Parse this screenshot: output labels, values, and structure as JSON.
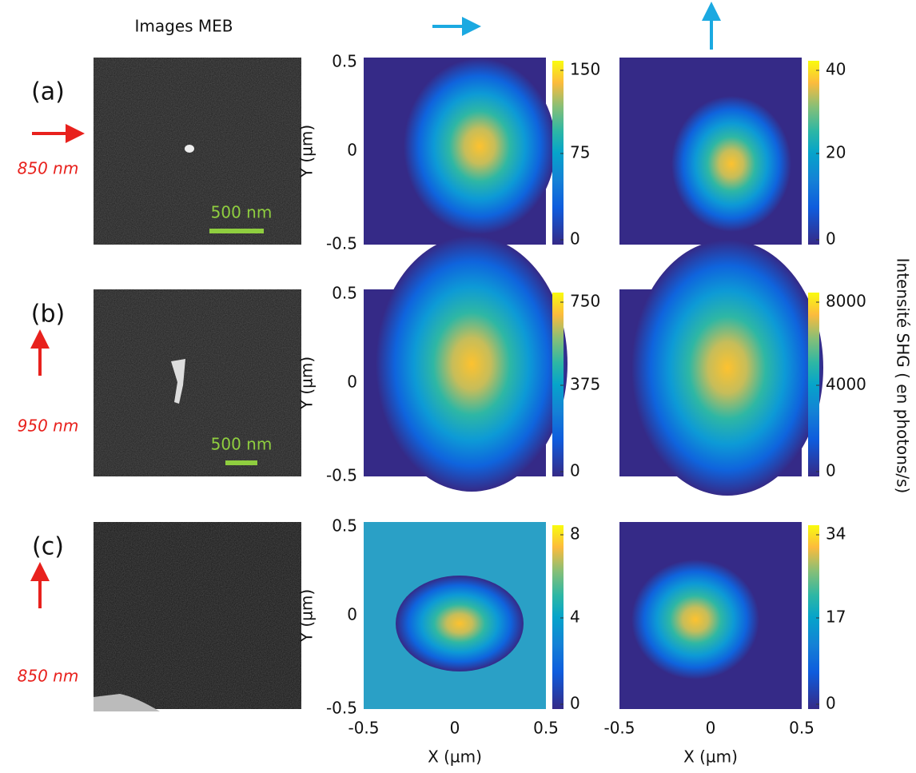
{
  "header": {
    "sem_title": "Images MEB"
  },
  "axis": {
    "y_label": "Y (µm)",
    "x_label": "X (µm)",
    "y_ticks": [
      "0.5",
      "0",
      "-0.5"
    ],
    "x_ticks": [
      "-0.5",
      "0",
      "0.5"
    ]
  },
  "colorbar_label": "Intensité SHG ( en photons/s)",
  "rows": [
    {
      "label": "(a)",
      "wavelength": "850 nm",
      "scale_bar": "500 nm",
      "colorbar_1": [
        "150",
        "75",
        "0"
      ],
      "colorbar_2": [
        "40",
        "20",
        "0"
      ]
    },
    {
      "label": "(b)",
      "wavelength": "950 nm",
      "scale_bar": "500 nm",
      "colorbar_1": [
        "750",
        "375",
        "0"
      ],
      "colorbar_2": [
        "8000",
        "4000",
        "0"
      ]
    },
    {
      "label": "(c)",
      "wavelength": "850 nm",
      "colorbar_1": [
        "8",
        "4",
        "0"
      ],
      "colorbar_2": [
        "34",
        "17",
        "0"
      ]
    }
  ]
}
